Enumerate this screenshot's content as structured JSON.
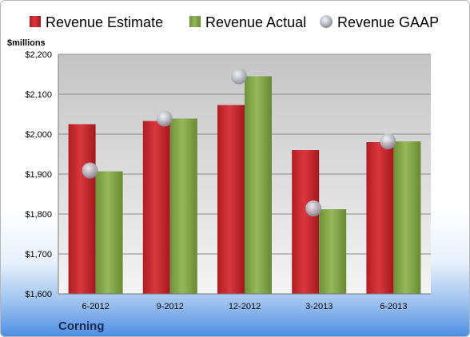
{
  "chart_data": {
    "type": "bar",
    "ylabel": "$millions",
    "company": "Corning",
    "categories": [
      "6-2012",
      "9-2012",
      "12-2012",
      "3-2013",
      "6-2013"
    ],
    "ylim": [
      1600,
      2200
    ],
    "yticks": [
      1600,
      1700,
      1800,
      1900,
      2000,
      2100,
      2200
    ],
    "ytick_labels": [
      "$1,600",
      "$1,700",
      "$1,800",
      "$1,900",
      "$2,000",
      "$2,100",
      "$2,200"
    ],
    "grid": true,
    "legend_position": "top",
    "series": [
      {
        "name": "Revenue Estimate",
        "kind": "bar",
        "color": "#c8262b",
        "values": [
          2025,
          2033,
          2073,
          1960,
          1980
        ]
      },
      {
        "name": "Revenue Actual",
        "kind": "bar",
        "color": "#86a84a",
        "values": [
          1907,
          2039,
          2145,
          1812,
          1982
        ]
      },
      {
        "name": "Revenue GAAP",
        "kind": "marker",
        "color": "#b9bcc4",
        "values": [
          1909,
          2039,
          2145,
          1814,
          1982
        ]
      }
    ]
  }
}
